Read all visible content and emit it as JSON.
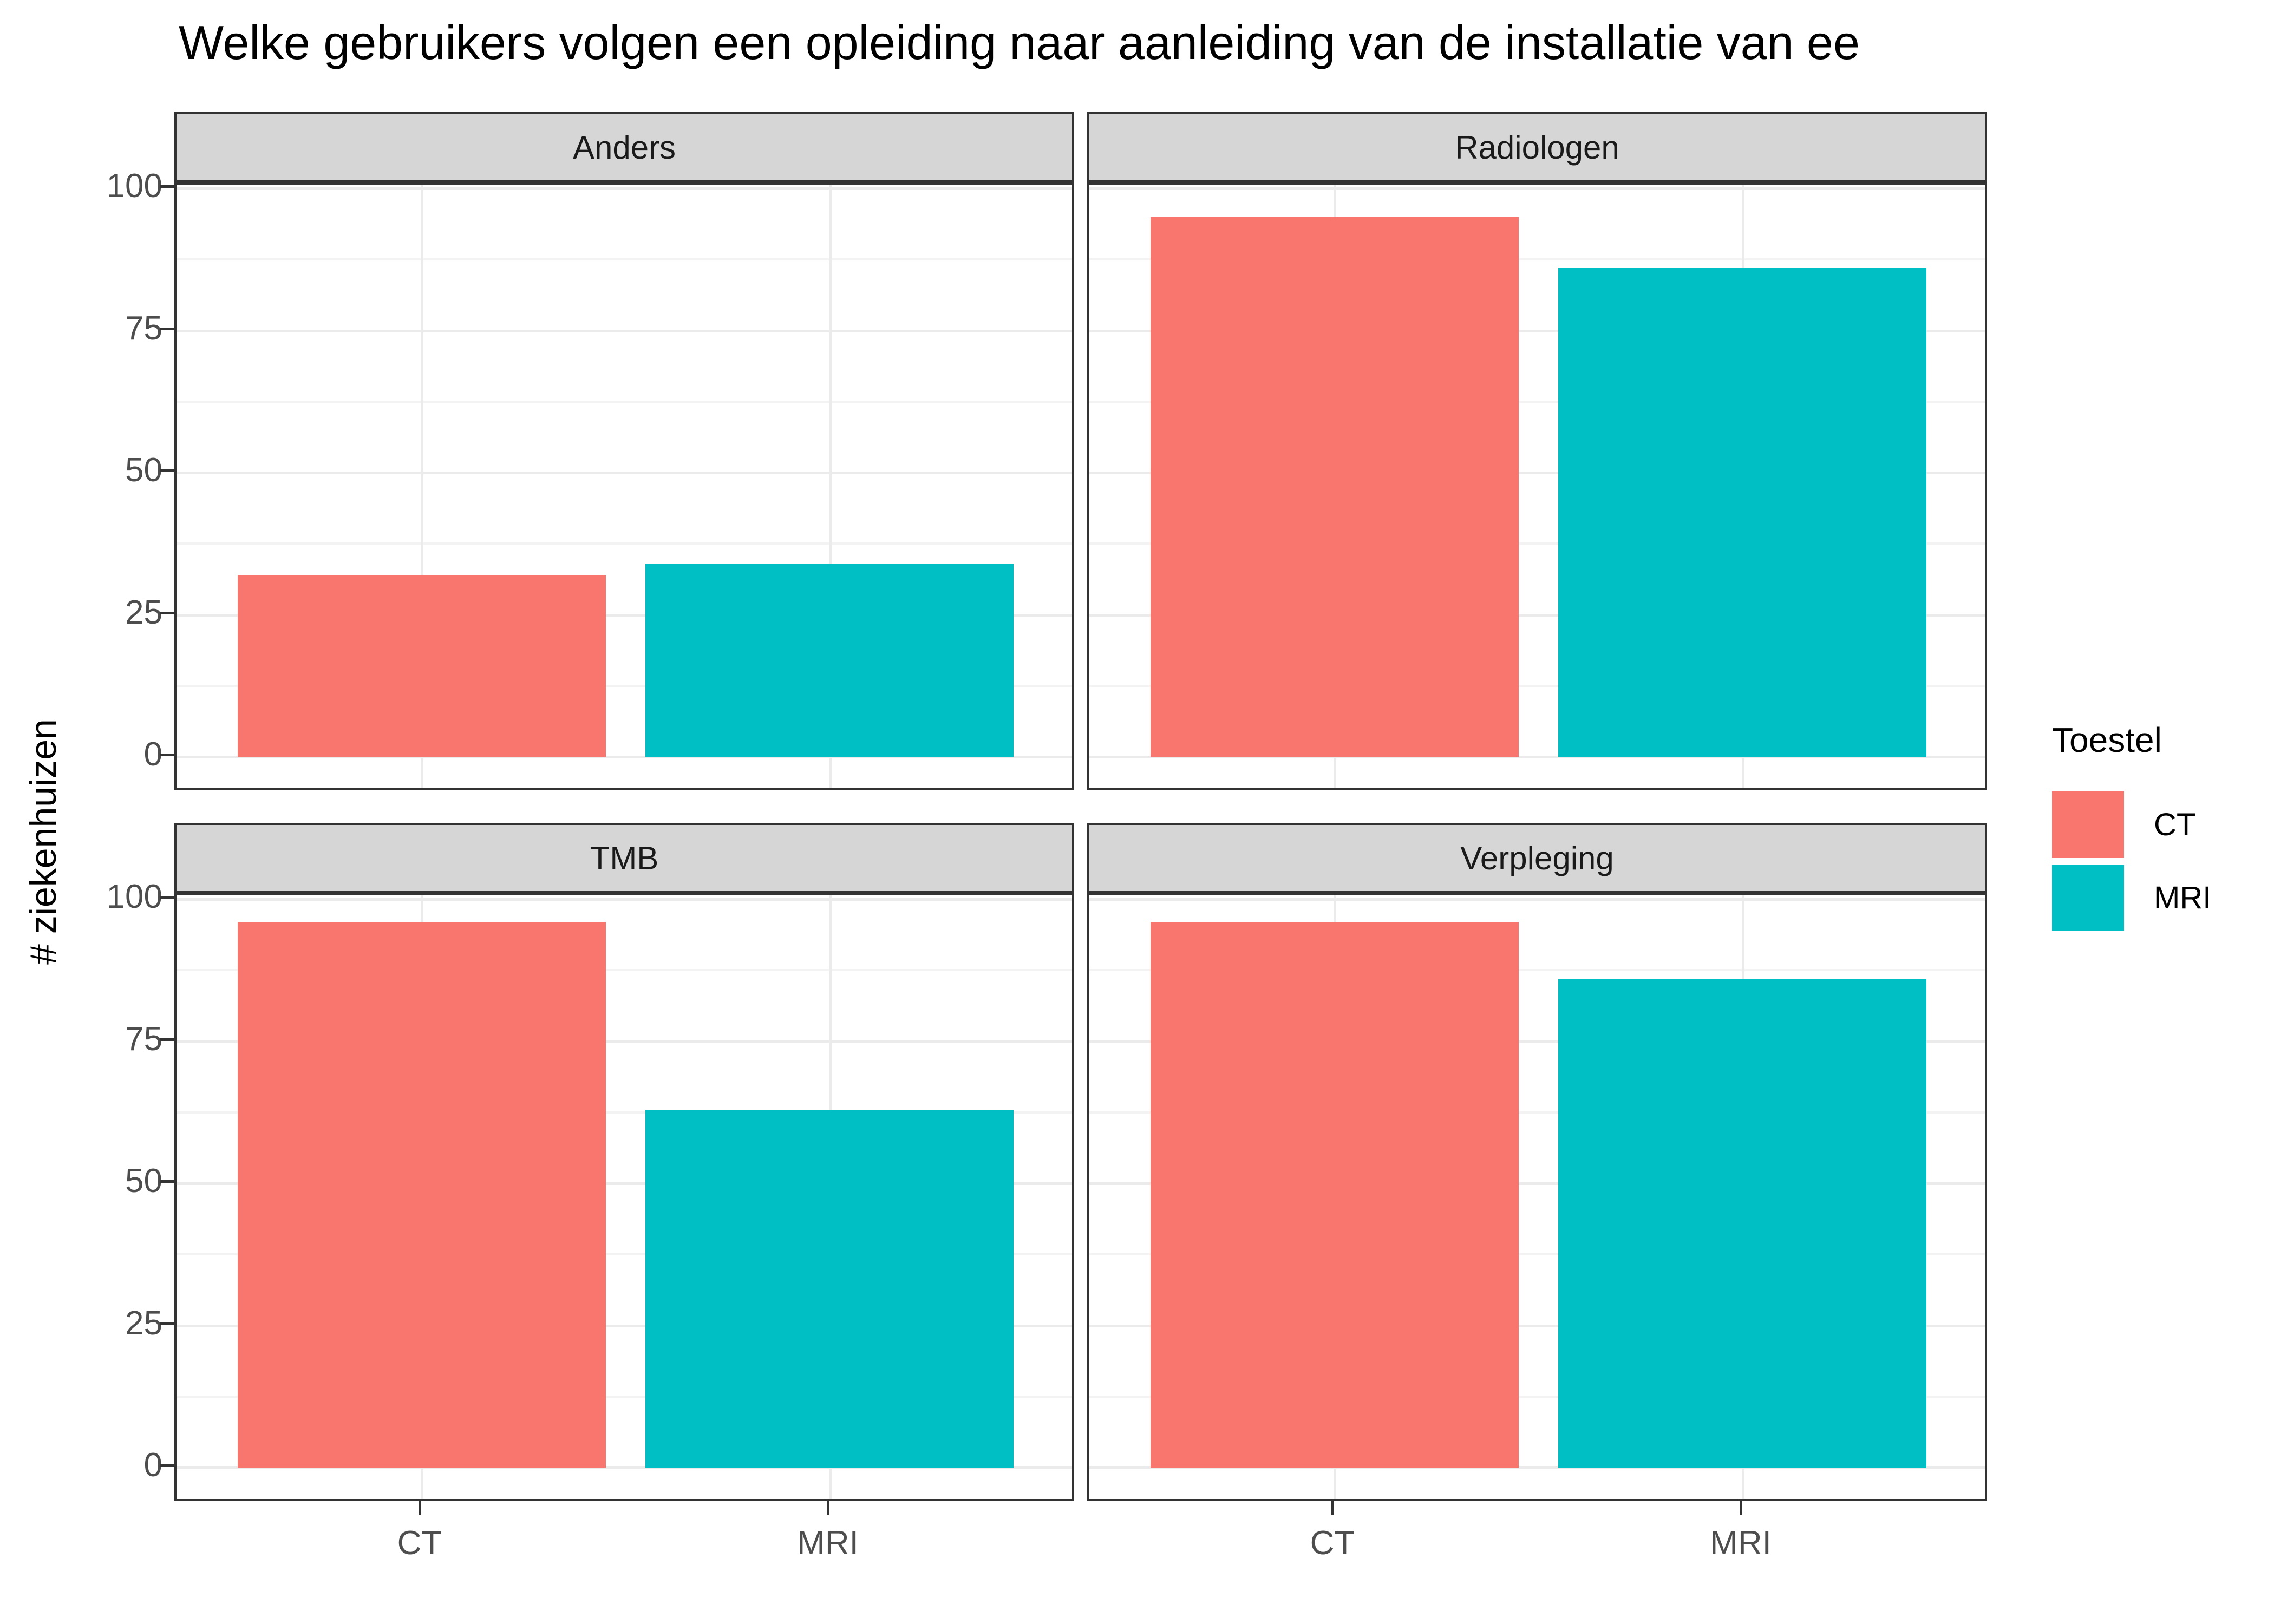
{
  "title": "Welke gebruikers volgen een opleiding naar aanleiding van de installatie van ee",
  "y_axis_title": "# ziekenhuizen",
  "axes": {
    "y_tick_labels": [
      "100",
      "75",
      "50",
      "25",
      "0"
    ],
    "y_tick_values": [
      100,
      75,
      50,
      25,
      0
    ],
    "x_tick_labels": [
      "CT",
      "MRI"
    ]
  },
  "legend": {
    "title": "Toestel",
    "items": [
      {
        "label": "CT",
        "color": "#F8766D"
      },
      {
        "label": "MRI",
        "color": "#00BFC4"
      }
    ]
  },
  "chart_data": {
    "type": "bar",
    "title": "Welke gebruikers volgen een opleiding naar aanleiding van de installatie van ee",
    "xlabel": "",
    "ylabel": "# ziekenhuizen",
    "categories": [
      "CT",
      "MRI"
    ],
    "facets": [
      {
        "label": "Anders",
        "values": [
          32,
          34
        ]
      },
      {
        "label": "Radiologen",
        "values": [
          95,
          86
        ]
      },
      {
        "label": "TMB",
        "values": [
          96,
          63
        ]
      },
      {
        "label": "Verpleging",
        "values": [
          96,
          86
        ]
      }
    ],
    "series_colors": [
      "#F8766D",
      "#00BFC4"
    ],
    "ylim": [
      0,
      100
    ],
    "y_major_gridlines": [
      0,
      25,
      50,
      75,
      100
    ],
    "y_minor_gridlines": [
      12.5,
      37.5,
      62.5,
      87.5
    ],
    "grid": true,
    "legend_title": "Toestel",
    "legend_position": "right"
  },
  "colors": {
    "bar_ct": "#F8766D",
    "bar_mri": "#00BFC4",
    "strip_bg": "#D6D6D6",
    "panel_border": "#333333",
    "grid_major": "#EBEBEB",
    "grid_minor": "#F3F3F3",
    "tick_text": "#4D4D4D",
    "axis_tick": "#333333"
  }
}
